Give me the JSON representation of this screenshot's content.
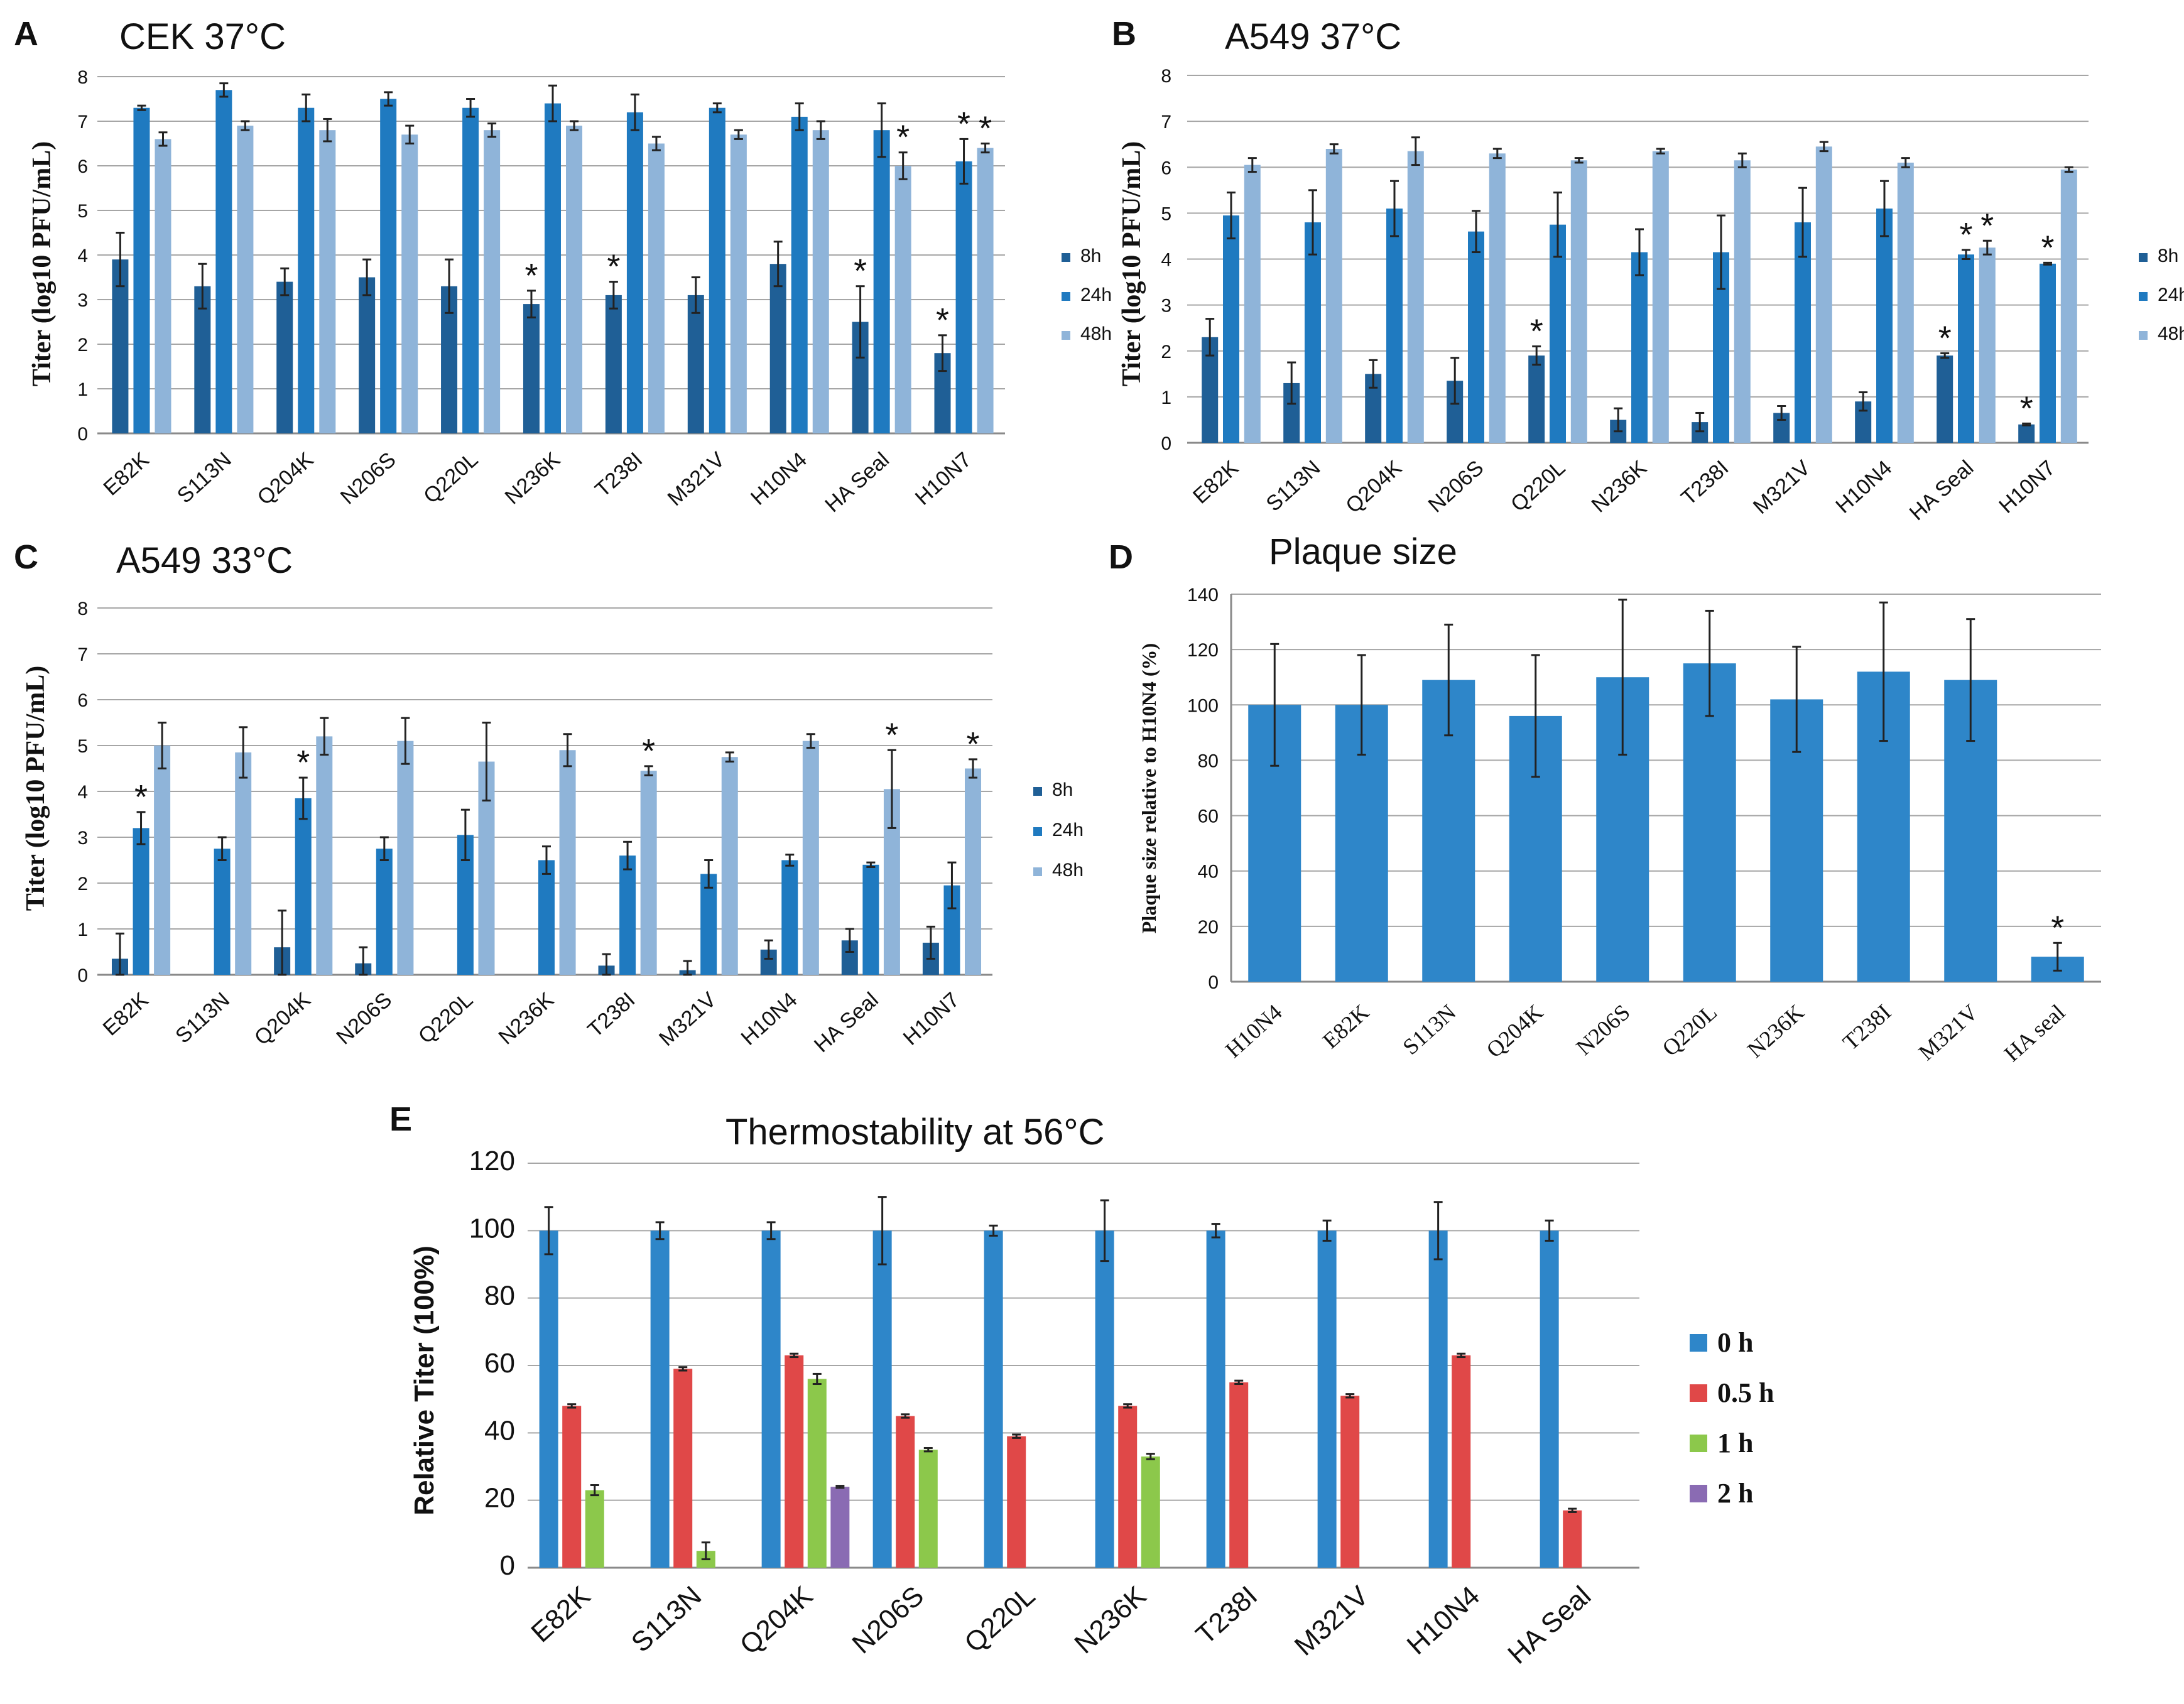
{
  "figure": {
    "panels": [
      {
        "letter": "A",
        "title": "CEK 37°C"
      },
      {
        "letter": "B",
        "title": "A549 37°C"
      },
      {
        "letter": "C",
        "title": "A549 33°C"
      },
      {
        "letter": "D",
        "title": "Plaque size"
      },
      {
        "letter": "E",
        "title": "Thermostability at 56°C"
      }
    ]
  },
  "colors": {
    "h8": "#1f5f96",
    "h24": "#1f7ac0",
    "h48": "#8fb4d9",
    "plaque": "#2e86c9",
    "t0": "#2e86c9",
    "t05": "#e04848",
    "t1": "#8cc84b",
    "t2": "#8a6bb3"
  },
  "chart_data": [
    {
      "id": "A",
      "type": "bar",
      "title": "CEK 37°C",
      "ylabel": "Titer (log10 PFU/mL)",
      "xlabel": "",
      "ylim": [
        0,
        8
      ],
      "yticks": [
        "0",
        "1",
        "2",
        "3",
        "4",
        "5",
        "6",
        "7",
        "8"
      ],
      "categories": [
        "E82K",
        "S113N",
        "Q204K",
        "N206S",
        "Q220L",
        "N236K",
        "T238I",
        "M321V",
        "H10N4",
        "HA Seal",
        "H10N7"
      ],
      "series": [
        {
          "name": "8h",
          "values": [
            3.9,
            3.3,
            3.4,
            3.5,
            3.3,
            2.9,
            3.1,
            3.1,
            3.8,
            2.5,
            1.8
          ],
          "errors": [
            0.6,
            0.5,
            0.3,
            0.4,
            0.6,
            0.3,
            0.3,
            0.4,
            0.5,
            0.8,
            0.4
          ],
          "stars": [
            false,
            false,
            false,
            false,
            false,
            true,
            true,
            false,
            false,
            true,
            true
          ]
        },
        {
          "name": "24h",
          "values": [
            7.3,
            7.7,
            7.3,
            7.5,
            7.3,
            7.4,
            7.2,
            7.3,
            7.1,
            6.8,
            6.1
          ],
          "errors": [
            0.05,
            0.15,
            0.3,
            0.15,
            0.2,
            0.4,
            0.4,
            0.1,
            0.3,
            0.6,
            0.5
          ],
          "stars": [
            false,
            false,
            false,
            false,
            false,
            false,
            false,
            false,
            false,
            false,
            true
          ]
        },
        {
          "name": "48h",
          "values": [
            6.6,
            6.9,
            6.8,
            6.7,
            6.8,
            6.9,
            6.5,
            6.7,
            6.8,
            6.0,
            6.4
          ],
          "errors": [
            0.15,
            0.1,
            0.25,
            0.2,
            0.15,
            0.1,
            0.15,
            0.1,
            0.2,
            0.3,
            0.1
          ],
          "stars": [
            false,
            false,
            false,
            false,
            false,
            false,
            false,
            false,
            false,
            true,
            true
          ]
        }
      ],
      "legend": [
        "8h",
        "24h",
        "48h"
      ]
    },
    {
      "id": "B",
      "type": "bar",
      "title": "A549 37°C",
      "ylabel": "Titer (log10 PFU/mL)",
      "xlabel": "",
      "ylim": [
        0,
        8
      ],
      "yticks": [
        "0",
        "1",
        "2",
        "3",
        "4",
        "5",
        "6",
        "7",
        "8"
      ],
      "categories": [
        "E82K",
        "S113N",
        "Q204K",
        "N206S",
        "Q220L",
        "N236K",
        "T238I",
        "M321V",
        "H10N4",
        "HA Seal",
        "H10N7"
      ],
      "series": [
        {
          "name": "8h",
          "values": [
            2.3,
            1.3,
            1.5,
            1.35,
            1.9,
            0.5,
            0.45,
            0.65,
            0.9,
            1.9,
            0.4
          ],
          "errors": [
            0.4,
            0.45,
            0.3,
            0.5,
            0.2,
            0.25,
            0.2,
            0.15,
            0.2,
            0.05,
            0.02
          ],
          "stars": [
            false,
            false,
            false,
            false,
            true,
            false,
            false,
            false,
            false,
            true,
            true
          ]
        },
        {
          "name": "24h",
          "values": [
            4.95,
            4.8,
            5.1,
            4.6,
            4.75,
            4.15,
            4.15,
            4.8,
            5.1,
            4.1,
            3.9
          ],
          "errors": [
            0.5,
            0.7,
            0.6,
            0.45,
            0.7,
            0.5,
            0.8,
            0.75,
            0.6,
            0.1,
            0.02
          ],
          "stars": [
            false,
            false,
            false,
            false,
            false,
            false,
            false,
            false,
            false,
            true,
            true
          ]
        },
        {
          "name": "48h",
          "values": [
            6.05,
            6.4,
            6.35,
            6.3,
            6.15,
            6.35,
            6.15,
            6.45,
            6.1,
            4.25,
            5.95
          ],
          "errors": [
            0.15,
            0.1,
            0.3,
            0.1,
            0.05,
            0.05,
            0.15,
            0.1,
            0.1,
            0.15,
            0.05
          ],
          "stars": [
            false,
            false,
            false,
            false,
            false,
            false,
            false,
            false,
            false,
            true,
            false
          ]
        }
      ],
      "legend": [
        "8h",
        "24h",
        "48h"
      ]
    },
    {
      "id": "C",
      "type": "bar",
      "title": "A549 33°C",
      "ylabel": "Titer (log10 PFU/mL)",
      "xlabel": "",
      "ylim": [
        0,
        8
      ],
      "yticks": [
        "0",
        "1",
        "2",
        "3",
        "4",
        "5",
        "6",
        "7",
        "8"
      ],
      "categories": [
        "E82K",
        "S113N",
        "Q204K",
        "N206S",
        "Q220L",
        "N236K",
        "T238I",
        "M321V",
        "H10N4",
        "HA Seal",
        "H10N7"
      ],
      "series": [
        {
          "name": "8h",
          "values": [
            0.35,
            0.0,
            0.6,
            0.25,
            0.0,
            0.0,
            0.2,
            0.1,
            0.55,
            0.75,
            0.7
          ],
          "errors": [
            0.55,
            0.0,
            0.8,
            0.35,
            0.0,
            0.0,
            0.25,
            0.2,
            0.2,
            0.25,
            0.35
          ],
          "stars": [
            false,
            false,
            false,
            false,
            false,
            false,
            false,
            false,
            false,
            false,
            false
          ]
        },
        {
          "name": "24h",
          "values": [
            3.2,
            2.75,
            3.85,
            2.75,
            3.05,
            2.5,
            2.6,
            2.2,
            2.5,
            2.4,
            1.95
          ],
          "errors": [
            0.35,
            0.25,
            0.45,
            0.25,
            0.55,
            0.3,
            0.3,
            0.3,
            0.12,
            0.05,
            0.5
          ],
          "stars": [
            true,
            false,
            true,
            false,
            false,
            false,
            false,
            false,
            false,
            false,
            false
          ]
        },
        {
          "name": "48h",
          "values": [
            5.0,
            4.85,
            5.2,
            5.1,
            4.65,
            4.9,
            4.45,
            4.75,
            5.1,
            4.05,
            4.5
          ],
          "errors": [
            0.5,
            0.55,
            0.4,
            0.5,
            0.85,
            0.35,
            0.1,
            0.1,
            0.15,
            0.85,
            0.2
          ],
          "stars": [
            false,
            false,
            false,
            false,
            false,
            false,
            true,
            false,
            false,
            true,
            true
          ]
        }
      ],
      "legend": [
        "8h",
        "24h",
        "48h"
      ]
    },
    {
      "id": "D",
      "type": "bar",
      "title": "Plaque size",
      "ylabel": "Plaque size relative to H10N4 (%)",
      "xlabel": "",
      "ylim": [
        0,
        140
      ],
      "yticks": [
        "0",
        "20",
        "40",
        "60",
        "80",
        "100",
        "120",
        "140"
      ],
      "categories": [
        "H10N4",
        "E82K",
        "S113N",
        "Q204K",
        "N206S",
        "Q220L",
        "N236K",
        "T238I",
        "M321V",
        "HA seal"
      ],
      "series": [
        {
          "name": "Plaque size",
          "values": [
            100,
            100,
            109,
            96,
            110,
            115,
            102,
            112,
            109,
            9
          ],
          "errors": [
            22,
            18,
            20,
            22,
            28,
            19,
            19,
            25,
            22,
            5
          ],
          "stars": [
            false,
            false,
            false,
            false,
            false,
            false,
            false,
            false,
            false,
            true
          ]
        }
      ],
      "legend": []
    },
    {
      "id": "E",
      "type": "bar",
      "title": "Thermostability at 56°C",
      "ylabel": "Relative Titer (100%)",
      "xlabel": "",
      "ylim": [
        0,
        120
      ],
      "yticks": [
        "0",
        "20",
        "40",
        "60",
        "80",
        "100",
        "120"
      ],
      "categories": [
        "E82K",
        "S113N",
        "Q204K",
        "N206S",
        "Q220L",
        "N236K",
        "T238I",
        "M321V",
        "H10N4",
        "HA Seal"
      ],
      "series": [
        {
          "name": "0 h",
          "values": [
            100,
            100,
            100,
            100,
            100,
            100,
            100,
            100,
            100,
            100
          ],
          "errors": [
            7,
            2.5,
            2.5,
            10,
            1.5,
            9,
            2,
            3,
            8.5,
            3
          ],
          "stars": []
        },
        {
          "name": "0.5 h",
          "values": [
            48,
            59,
            63,
            45,
            39,
            48,
            55,
            51,
            63,
            17
          ],
          "errors": [
            0.5,
            0.5,
            0.5,
            0.5,
            0.5,
            0.5,
            0.5,
            0.5,
            0.5,
            0.5
          ],
          "stars": []
        },
        {
          "name": "1 h",
          "values": [
            23,
            5,
            56,
            35,
            0,
            33,
            0,
            0,
            0,
            0
          ],
          "errors": [
            1.5,
            2.5,
            1.5,
            0.5,
            0,
            0.8,
            0,
            0,
            0,
            0
          ],
          "stars": []
        },
        {
          "name": "2 h",
          "values": [
            0,
            0,
            24,
            0,
            0,
            0,
            0,
            0,
            0,
            0
          ],
          "errors": [
            0,
            0,
            0.3,
            0,
            0,
            0,
            0,
            0,
            0,
            0
          ],
          "stars": []
        }
      ],
      "legend": [
        "0 h",
        "0.5 h",
        "1 h",
        "2 h"
      ]
    }
  ]
}
